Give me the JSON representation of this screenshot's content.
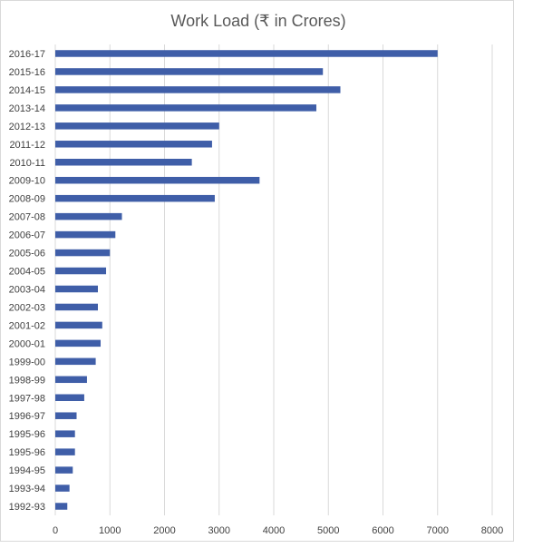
{
  "chart_data": {
    "type": "bar",
    "orientation": "horizontal",
    "title": "Work Load (₹ in Crores)",
    "xlabel": "",
    "ylabel": "",
    "xlim": [
      0,
      8000
    ],
    "x_ticks": [
      0,
      1000,
      2000,
      3000,
      4000,
      5000,
      6000,
      7000,
      8000
    ],
    "grid": "vertical",
    "legend": "none",
    "bar_color": "#3f5ea8",
    "categories": [
      "2016-17",
      "2015-16",
      "2014-15",
      "2013-14",
      "2012-13",
      "2011-12",
      "2010-11",
      "2009-10",
      "2008-09",
      "2007-08",
      "2006-07",
      "2005-06",
      "2004-05",
      "2003-04",
      "2002-03",
      "2001-02",
      "2000-01",
      "1999-00",
      "1998-99",
      "1997-98",
      "1996-97",
      "1995-96",
      "1995-96",
      "1994-95",
      "1993-94",
      "1992-93"
    ],
    "values": [
      7000,
      4900,
      5220,
      4780,
      3000,
      2870,
      2500,
      3740,
      2920,
      1220,
      1100,
      1000,
      930,
      780,
      780,
      860,
      830,
      740,
      580,
      530,
      390,
      360,
      360,
      320,
      260,
      220
    ]
  }
}
